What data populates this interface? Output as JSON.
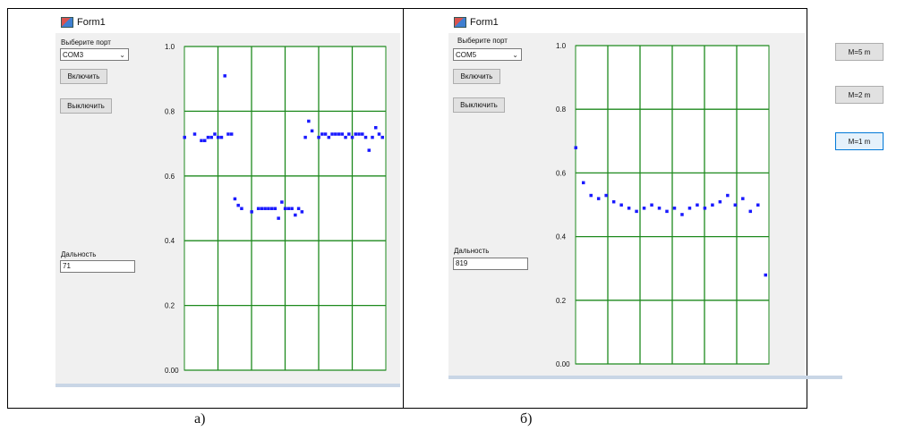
{
  "window_title": "Form1",
  "forms": [
    {
      "port_label": "Выберите порт",
      "port_value": "COM3",
      "on_button": "Включить",
      "off_button": "Выключить",
      "distance_label": "Дальность",
      "distance_value": "71",
      "caption": "а)"
    },
    {
      "port_label": "Выберите порт",
      "port_value": "COM5",
      "on_button": "Включить",
      "off_button": "Выключить",
      "distance_label": "Дальность",
      "distance_value": "819",
      "caption": "б)"
    }
  ],
  "scale_buttons": [
    "M=5 m",
    "M=2 m",
    "M=1 m"
  ],
  "chart_data": [
    {
      "type": "scatter",
      "title": "",
      "xlabel": "",
      "ylabel": "",
      "ylim": [
        0,
        1
      ],
      "y_ticks": [
        "1.0",
        "0.8",
        "0.6",
        "0.4",
        "0.2",
        "0.00"
      ],
      "grid": true,
      "series": [
        {
          "color": "#1a1aff",
          "x": [
            0,
            3,
            5,
            6,
            7,
            8,
            9,
            10,
            11,
            12,
            13,
            14,
            15,
            16,
            17,
            20,
            22,
            23,
            24,
            25,
            26,
            27,
            28,
            29,
            30,
            31,
            32,
            33,
            34,
            35,
            36,
            37,
            38,
            40,
            41,
            42,
            43,
            44,
            45,
            46,
            47,
            48,
            49,
            50,
            51,
            52,
            53,
            54,
            55,
            56,
            57,
            58,
            59
          ],
          "y": [
            0.72,
            0.73,
            0.71,
            0.71,
            0.72,
            0.72,
            0.73,
            0.72,
            0.72,
            0.91,
            0.73,
            0.73,
            0.53,
            0.51,
            0.5,
            0.49,
            0.5,
            0.5,
            0.5,
            0.5,
            0.5,
            0.5,
            0.47,
            0.52,
            0.5,
            0.5,
            0.5,
            0.48,
            0.5,
            0.49,
            0.72,
            0.77,
            0.74,
            0.72,
            0.73,
            0.73,
            0.72,
            0.73,
            0.73,
            0.73,
            0.73,
            0.72,
            0.73,
            0.72,
            0.73,
            0.73,
            0.73,
            0.72,
            0.68,
            0.72,
            0.75,
            0.73,
            0.72
          ]
        }
      ]
    },
    {
      "type": "scatter",
      "title": "",
      "xlabel": "",
      "ylabel": "",
      "ylim": [
        0,
        1
      ],
      "y_ticks": [
        "1.0",
        "0.8",
        "0.6",
        "0.4",
        "0.2",
        "0.00"
      ],
      "grid": true,
      "series": [
        {
          "color": "#1a1aff",
          "x": [
            0,
            1,
            2,
            3,
            4,
            5,
            6,
            7,
            8,
            9,
            10,
            11,
            12,
            13,
            14,
            15,
            16,
            17,
            18,
            19,
            20,
            21,
            22,
            23,
            24,
            25
          ],
          "y": [
            0.68,
            0.57,
            0.53,
            0.52,
            0.53,
            0.51,
            0.5,
            0.49,
            0.48,
            0.49,
            0.5,
            0.49,
            0.48,
            0.49,
            0.47,
            0.49,
            0.5,
            0.49,
            0.5,
            0.51,
            0.53,
            0.5,
            0.52,
            0.48,
            0.5,
            0.28
          ]
        }
      ]
    }
  ]
}
